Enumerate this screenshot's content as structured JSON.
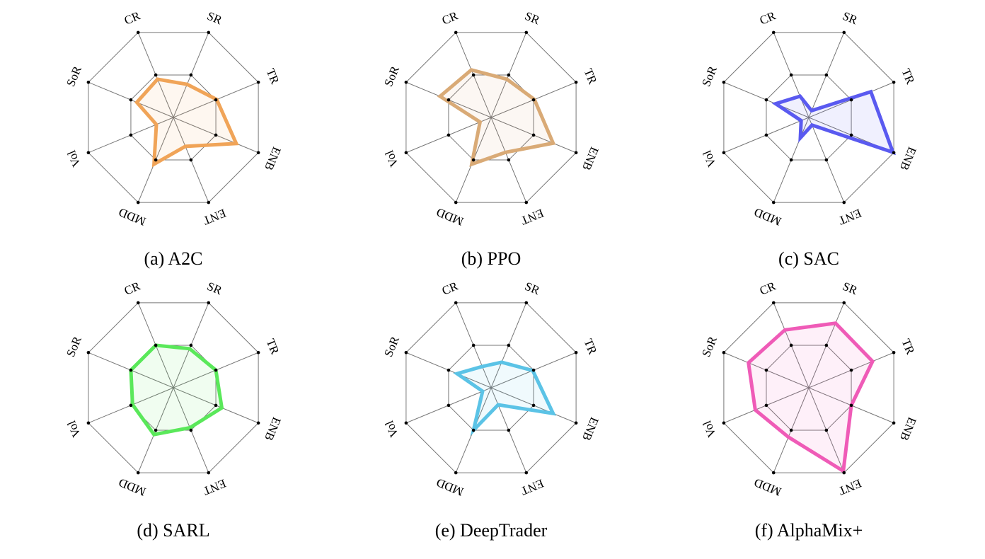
{
  "chart_data": [
    {
      "type": "radar",
      "caption": "(a) A2C",
      "axes": [
        "CR",
        "SR",
        "TR",
        "ENB",
        "ENT",
        "MDD",
        "Vol",
        "SoR"
      ],
      "values": [
        0.45,
        0.39,
        0.51,
        0.74,
        0.34,
        0.55,
        0.2,
        0.43
      ],
      "color": "#f0a458",
      "rlim": [
        0,
        1
      ],
      "rings": [
        0.5,
        1.0
      ]
    },
    {
      "type": "radar",
      "caption": "(b) PPO",
      "axes": [
        "CR",
        "SR",
        "TR",
        "ENB",
        "ENT",
        "MDD",
        "Vol",
        "SoR"
      ],
      "values": [
        0.56,
        0.45,
        0.51,
        0.73,
        0.41,
        0.55,
        0.13,
        0.6
      ],
      "color": "#d9aa76",
      "rlim": [
        0,
        1
      ],
      "rings": [
        0.5,
        1.0
      ]
    },
    {
      "type": "radar",
      "caption": "(c) SAC",
      "axes": [
        "CR",
        "SR",
        "TR",
        "ENB",
        "ENT",
        "MDD",
        "Vol",
        "SoR"
      ],
      "values": [
        0.25,
        0.08,
        0.73,
        0.99,
        0.09,
        0.24,
        0.09,
        0.39
      ],
      "color": "#5a5af0",
      "rlim": [
        0,
        1
      ],
      "rings": [
        0.5,
        1.0
      ]
    },
    {
      "type": "radar",
      "caption": "(d) SARL",
      "axes": [
        "CR",
        "SR",
        "TR",
        "ENB",
        "ENT",
        "MDD",
        "Vol",
        "SoR"
      ],
      "values": [
        0.5,
        0.46,
        0.5,
        0.57,
        0.47,
        0.55,
        0.48,
        0.5
      ],
      "color": "#5ae85a",
      "rlim": [
        0,
        1
      ],
      "rings": [
        0.5,
        1.0
      ]
    },
    {
      "type": "radar",
      "caption": "(e) DeepTrader",
      "axes": [
        "CR",
        "SR",
        "TR",
        "ENB",
        "ENT",
        "MDD",
        "Vol",
        "SoR"
      ],
      "values": [
        0.25,
        0.3,
        0.49,
        0.73,
        0.2,
        0.5,
        0.1,
        0.4
      ],
      "color": "#5bc3e6",
      "rlim": [
        0,
        1
      ],
      "rings": [
        0.5,
        1.0
      ]
    },
    {
      "type": "radar",
      "caption": "(f) AlphaMix+",
      "axes": [
        "CR",
        "SR",
        "TR",
        "ENB",
        "ENT",
        "MDD",
        "Vol",
        "SoR"
      ],
      "values": [
        0.68,
        0.76,
        0.75,
        0.5,
        0.98,
        0.58,
        0.63,
        0.71
      ],
      "color": "#ef5bb7",
      "rlim": [
        0,
        1
      ],
      "rings": [
        0.5,
        1.0
      ]
    }
  ]
}
